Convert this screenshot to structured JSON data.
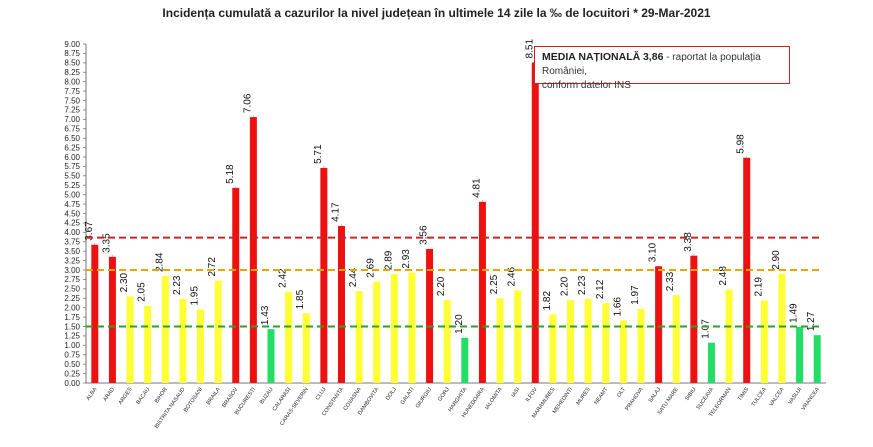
{
  "chart_data": {
    "type": "bar",
    "title": "Incidența cumulată a cazurilor la nivel județean în ultimele 14 zile la ‰ de locuitori * 29-Mar-2021",
    "xlabel": "",
    "ylabel": "",
    "ylim": [
      0,
      9
    ],
    "ytick_step": 0.25,
    "grid": false,
    "categories": [
      "ALBA",
      "ARAD",
      "ARGES",
      "BACAU",
      "BIHOR",
      "BISTRITA NASAUD",
      "BOTOSANI",
      "BRAILA",
      "BRASOV",
      "BUCURESTI",
      "BUZAU",
      "CALARASI",
      "CARAS-SEVERIN",
      "CLUJ",
      "CONSTANTA",
      "COVASNA",
      "DAMBOVITA",
      "DOLJ",
      "GALATI",
      "GIURGIU",
      "GORJ",
      "HARGHITA",
      "HUNEDOARA",
      "IALOMITA",
      "IASI",
      "ILFOV",
      "MARAMURES",
      "MEHEDINTI",
      "MURES",
      "NEAMT",
      "OLT",
      "PRAHOVA",
      "SALAJ",
      "SATU MARE",
      "SIBIU",
      "SUCEAVA",
      "TELEORMAN",
      "TIMIS",
      "TULCEA",
      "VALCEA",
      "VASLUI",
      "VRANCEA"
    ],
    "values": [
      3.67,
      3.35,
      2.3,
      2.05,
      2.84,
      2.23,
      1.95,
      2.72,
      5.18,
      7.06,
      1.43,
      2.42,
      1.85,
      5.71,
      4.17,
      2.44,
      2.69,
      2.89,
      2.93,
      3.56,
      2.2,
      1.2,
      4.81,
      2.25,
      2.46,
      8.51,
      1.82,
      2.2,
      2.23,
      2.12,
      1.66,
      1.97,
      3.1,
      2.33,
      3.38,
      1.07,
      2.48,
      5.98,
      2.19,
      2.9,
      1.49,
      1.27
    ],
    "reference_lines": [
      {
        "value": 3.86,
        "color": "#c62828"
      },
      {
        "value": 3.0,
        "color": "#e0a800"
      },
      {
        "value": 1.5,
        "color": "#2e9e2e"
      }
    ],
    "colors": {
      "red": "#ee1111",
      "yellow": "#ffff33",
      "green": "#22dd66"
    },
    "annotation": {
      "label": "MEDIA NAȚIONALĂ",
      "value": "3,86",
      "text_a": "- raportat la populația României,",
      "text_b": "conform datelor INS"
    }
  }
}
